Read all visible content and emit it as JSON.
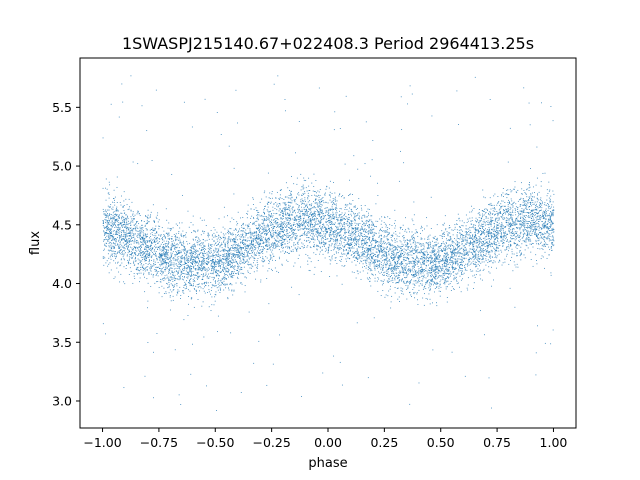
{
  "chart_data": {
    "type": "scatter",
    "title": "1SWASPJ215140.67+022408.3 Period 2964413.25s",
    "xlabel": "phase",
    "ylabel": "flux",
    "xlim": [
      -1.1,
      1.1
    ],
    "ylim": [
      2.77,
      5.92
    ],
    "xticks": [
      -1.0,
      -0.75,
      -0.5,
      -0.25,
      0.0,
      0.25,
      0.5,
      0.75,
      1.0
    ],
    "xtick_labels": [
      "−1.00",
      "−0.75",
      "−0.50",
      "−0.25",
      "0.00",
      "0.25",
      "0.50",
      "0.75",
      "1.00"
    ],
    "yticks": [
      3.0,
      3.5,
      4.0,
      4.5,
      5.0,
      5.5
    ],
    "ytick_labels": [
      "3.0",
      "3.5",
      "4.0",
      "4.5",
      "5.0",
      "5.5"
    ],
    "grid": false,
    "legend": "none",
    "marker_color": "#1f77b4",
    "series": [
      {
        "x": [
          -1.0,
          -0.9,
          -0.8,
          -0.7,
          -0.6,
          -0.5,
          -0.4,
          -0.3,
          -0.2,
          -0.1,
          0.0,
          0.1,
          0.2,
          0.3,
          0.4,
          0.5,
          0.6,
          0.7,
          0.8,
          0.9,
          1.0
        ],
        "y": [
          4.5,
          4.42,
          4.3,
          4.2,
          4.18,
          4.18,
          4.28,
          4.4,
          4.5,
          4.55,
          4.5,
          4.42,
          4.3,
          4.2,
          4.18,
          4.18,
          4.28,
          4.4,
          4.5,
          4.55,
          4.5
        ],
        "scatter": 0.2,
        "outlier_range": [
          2.92,
          5.8
        ],
        "point_count": 9000
      }
    ]
  }
}
